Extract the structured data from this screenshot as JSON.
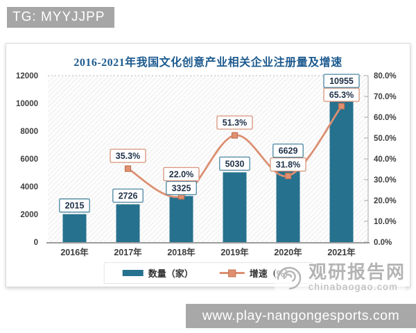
{
  "badge": {
    "text": "TG: MYYJJPP"
  },
  "chart": {
    "title": "2016-2021年我国文化创意产业相关企业注册量及增速",
    "legend": {
      "bar_label": "数量（家）",
      "line_label": "增速（%）"
    }
  },
  "chart_data": {
    "type": "bar+line",
    "categories": [
      "2016年",
      "2017年",
      "2018年",
      "2019年",
      "2020年",
      "2021年"
    ],
    "series": [
      {
        "name": "数量（家）",
        "type": "bar",
        "axis": "left",
        "color": "#26718e",
        "values": [
          2015,
          2726,
          3325,
          5030,
          6629,
          10955
        ],
        "labels": [
          "2015",
          "2726",
          "3325",
          "5030",
          "6629",
          "10955"
        ]
      },
      {
        "name": "增速（%）",
        "type": "line",
        "axis": "right",
        "color": "#dc8f72",
        "marker_color": "#e09070",
        "marker_stroke": "#c07352",
        "values": [
          null,
          35.3,
          22.0,
          51.3,
          31.8,
          65.3
        ],
        "labels": [
          "",
          "35.3%",
          "22.0%",
          "51.3%",
          "31.8%",
          "65.3%"
        ]
      }
    ],
    "left_axis": {
      "min": 0,
      "max": 12000,
      "step": 2000,
      "ticks": [
        "0",
        "2000",
        "4000",
        "6000",
        "8000",
        "10000",
        "12000"
      ]
    },
    "right_axis": {
      "min": 0,
      "max": 80,
      "step": 10,
      "ticks": [
        "0.0%",
        "10.0%",
        "20.0%",
        "30.0%",
        "40.0%",
        "50.0%",
        "60.0%",
        "70.0%",
        "80.0%"
      ]
    },
    "grid": "hatched plot background, dotted gridline at top (12000 / 80%)",
    "legend_position": "bottom-center",
    "value_box_border": "#4a85a0",
    "pct_box_border": "#d8937b",
    "label_text_color": "#1e3048"
  },
  "watermark": {
    "site_name": "观研报告网",
    "site_domain": "chinabaogao.com"
  },
  "bottom_bar": {
    "url": "www.play-nangongesports.com"
  }
}
